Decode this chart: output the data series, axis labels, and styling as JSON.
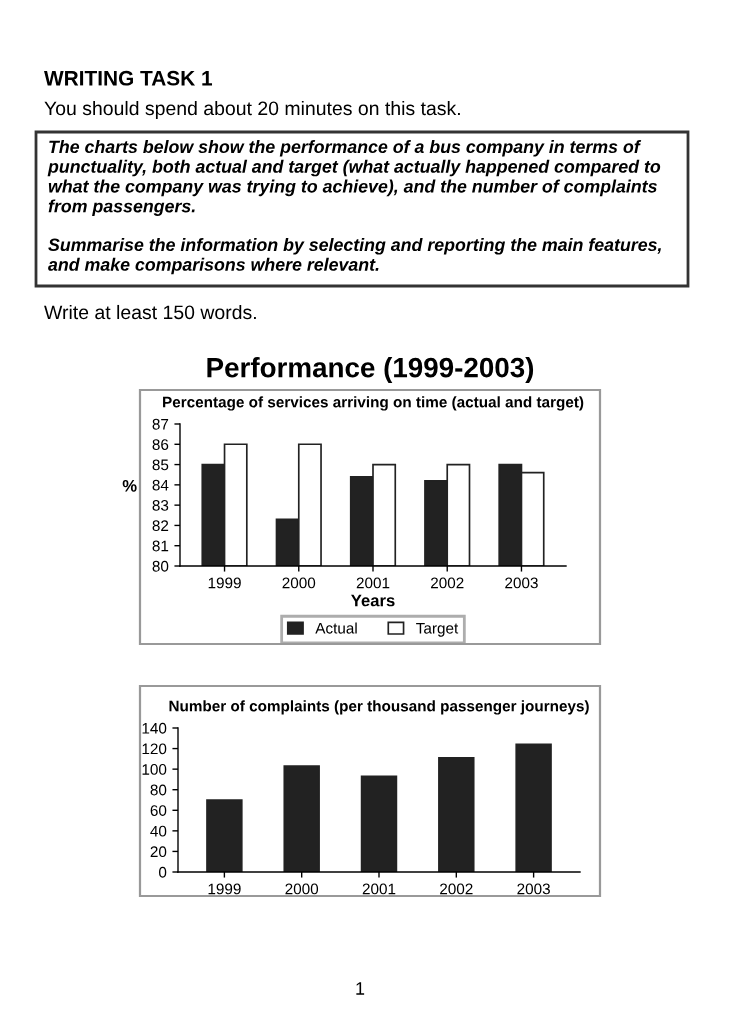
{
  "chart_data": [
    {
      "type": "bar",
      "title": "Performance (1999-2003)",
      "subtitle": "Percentage of services arriving on time (actual and target)",
      "xlabel": "Years",
      "ylabel": "%",
      "categories": [
        "1999",
        "2000",
        "2001",
        "2002",
        "2003"
      ],
      "series": [
        {
          "name": "Actual",
          "color": "#222222",
          "values": [
            85,
            82.3,
            84.4,
            84.2,
            85
          ]
        },
        {
          "name": "Target",
          "color": "#ffffff",
          "values": [
            86,
            86,
            85,
            85,
            84.6
          ]
        }
      ],
      "ylim": [
        80,
        87
      ],
      "yticks": [
        80,
        81,
        82,
        83,
        84,
        85,
        86,
        87
      ],
      "legend": "bottom",
      "grid": false,
      "annotations": [
        "WRITING TASK 1",
        "You should spend about 20 minutes on this task.",
        "The charts below show the performance of a bus company in terms of punctuality, both actual and target (what actually happened compared to what the company was trying to achieve), and the number of complaints from passengers.",
        "Summarise the information by selecting and reporting the main features, and make comparisons where relevant.",
        "Write at least 150 words.",
        "1"
      ]
    },
    {
      "type": "bar",
      "title": "Number of complaints (per thousand passenger journeys)",
      "categories": [
        "1999",
        "2000",
        "2001",
        "2002",
        "2003"
      ],
      "values": [
        70,
        103,
        93,
        111,
        124
      ],
      "color": "#222222",
      "ylim": [
        0,
        140
      ],
      "yticks": [
        0,
        20,
        40,
        60,
        80,
        100,
        120,
        140
      ],
      "grid": false
    }
  ]
}
